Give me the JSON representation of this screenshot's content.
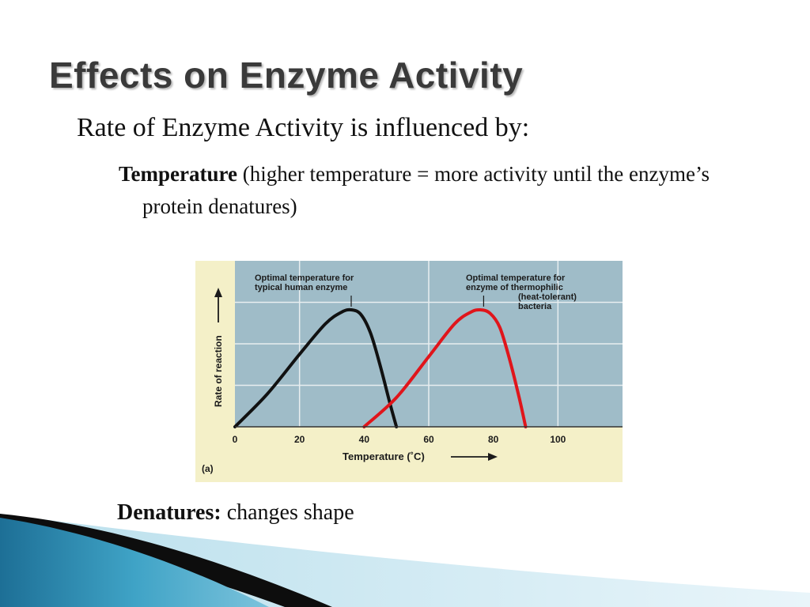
{
  "slide": {
    "title": "Effects on Enzyme Activity",
    "bullet_main": "Rate of Enzyme Activity is influenced by:",
    "temperature_term": "Temperature",
    "temperature_text": " (higher temperature = more activity until the enzyme’s protein denatures)",
    "denatures_term": "Denatures:",
    "denatures_text": " changes shape"
  },
  "colors": {
    "plot_background": "#9fbcc8",
    "figure_background": "#f4f0c8",
    "human_curve": "#111111",
    "thermophilic_curve": "#e0151b",
    "footer_blue": "#3fa3c6"
  },
  "chart_data": {
    "type": "line",
    "panel_label": "(a)",
    "xlabel": "Temperature (˚C)",
    "ylabel": "Rate of reaction",
    "xlim": [
      0,
      120
    ],
    "ylim": [
      0,
      1
    ],
    "x_ticks": [
      0,
      20,
      40,
      60,
      80,
      100
    ],
    "grid": true,
    "series": [
      {
        "x": [
          0,
          10,
          20,
          28,
          33,
          36,
          39,
          42,
          45,
          48,
          50
        ],
        "y": [
          0.0,
          0.28,
          0.62,
          0.88,
          0.98,
          1.0,
          0.96,
          0.8,
          0.52,
          0.2,
          0.0
        ]
      },
      {
        "x": [
          40,
          50,
          60,
          68,
          73,
          76,
          79,
          82,
          85,
          88,
          90
        ],
        "y": [
          0.0,
          0.25,
          0.6,
          0.88,
          0.98,
          1.0,
          0.97,
          0.85,
          0.58,
          0.25,
          0.0
        ]
      }
    ],
    "annotations": [
      {
        "lines": [
          "Optimal temperature for",
          "typical human enzyme"
        ],
        "x": 36
      },
      {
        "lines": [
          "Optimal temperature for",
          "enzyme of thermophilic",
          "(heat-tolerant)",
          "bacteria"
        ],
        "x": 77
      }
    ]
  }
}
